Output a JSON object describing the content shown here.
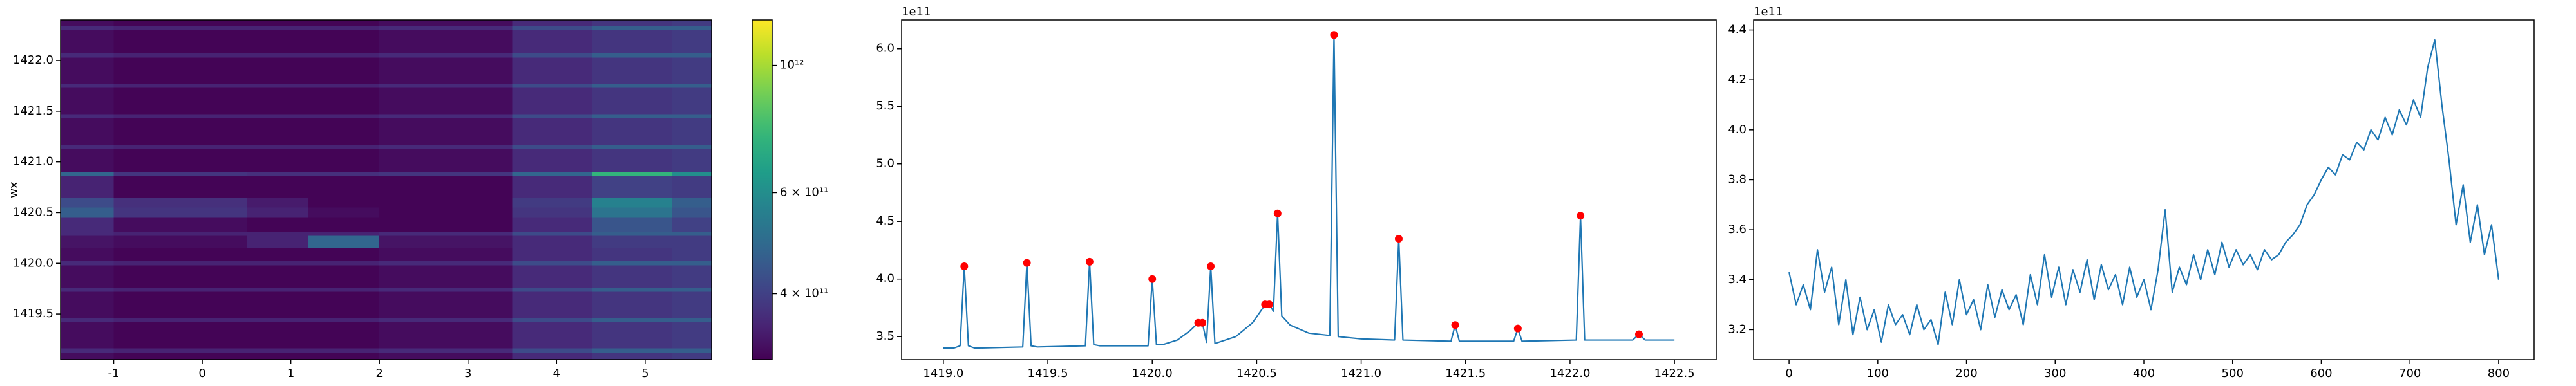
{
  "chart_data": [
    {
      "type": "heatmap",
      "ylabel": "wx",
      "colormap": "viridis",
      "xlim": [
        -1.6,
        5.75
      ],
      "ylim": [
        1419.05,
        1422.4
      ],
      "xticks": [
        -1,
        0,
        1,
        2,
        3,
        4,
        5
      ],
      "yticks": [
        1419.5,
        {
          "value": 1420.0,
          "label": "1420.0"
        },
        1420.5,
        {
          "value": 1421.0,
          "label": "1421.0"
        },
        1421.5,
        {
          "value": 1422.0,
          "label": "1422.0"
        }
      ],
      "xedges": [
        -1.6,
        -1.0,
        0.5,
        1.2,
        2.0,
        3.5,
        4.4,
        5.3,
        5.75
      ],
      "yedges": [
        1419.05,
        1419.12,
        1419.16,
        1419.42,
        1419.46,
        1419.72,
        1419.76,
        1419.98,
        1420.02,
        1420.15,
        1420.27,
        1420.31,
        1420.45,
        1420.55,
        1420.65,
        1420.86,
        1420.9,
        1421.13,
        1421.17,
        1421.43,
        1421.47,
        1421.73,
        1421.77,
        1422.03,
        1422.07,
        1422.3,
        1422.34,
        1422.4
      ],
      "z": [
        [
          320000000000.0,
          310000000000.0,
          310000000000.0,
          310000000000.0,
          320000000000.0,
          360000000000.0,
          380000000000.0,
          390000000000.0
        ],
        [
          360000000000.0,
          350000000000.0,
          350000000000.0,
          350000000000.0,
          360000000000.0,
          420000000000.0,
          460000000000.0,
          460000000000.0
        ],
        [
          320000000000.0,
          310000000000.0,
          310000000000.0,
          310000000000.0,
          320000000000.0,
          360000000000.0,
          380000000000.0,
          390000000000.0
        ],
        [
          360000000000.0,
          350000000000.0,
          350000000000.0,
          350000000000.0,
          360000000000.0,
          420000000000.0,
          460000000000.0,
          460000000000.0
        ],
        [
          320000000000.0,
          310000000000.0,
          310000000000.0,
          310000000000.0,
          320000000000.0,
          360000000000.0,
          380000000000.0,
          390000000000.0
        ],
        [
          360000000000.0,
          350000000000.0,
          350000000000.0,
          350000000000.0,
          360000000000.0,
          420000000000.0,
          460000000000.0,
          460000000000.0
        ],
        [
          320000000000.0,
          310000000000.0,
          310000000000.0,
          310000000000.0,
          320000000000.0,
          360000000000.0,
          380000000000.0,
          390000000000.0
        ],
        [
          360000000000.0,
          350000000000.0,
          350000000000.0,
          350000000000.0,
          360000000000.0,
          420000000000.0,
          460000000000.0,
          460000000000.0
        ],
        [
          320000000000.0,
          310000000000.0,
          310000000000.0,
          310000000000.0,
          320000000000.0,
          360000000000.0,
          380000000000.0,
          390000000000.0
        ],
        [
          330000000000.0,
          320000000000.0,
          350000000000.0,
          480000000000.0,
          330000000000.0,
          360000000000.0,
          390000000000.0,
          390000000000.0
        ],
        [
          360000000000.0,
          350000000000.0,
          350000000000.0,
          350000000000.0,
          360000000000.0,
          420000000000.0,
          460000000000.0,
          460000000000.0
        ],
        [
          360000000000.0,
          320000000000.0,
          310000000000.0,
          310000000000.0,
          310000000000.0,
          360000000000.0,
          440000000000.0,
          400000000000.0
        ],
        [
          460000000000.0,
          380000000000.0,
          350000000000.0,
          320000000000.0,
          310000000000.0,
          380000000000.0,
          520000000000.0,
          440000000000.0
        ],
        [
          420000000000.0,
          370000000000.0,
          340000000000.0,
          310000000000.0,
          310000000000.0,
          390000000000.0,
          560000000000.0,
          460000000000.0
        ],
        [
          350000000000.0,
          310000000000.0,
          310000000000.0,
          310000000000.0,
          310000000000.0,
          360000000000.0,
          400000000000.0,
          390000000000.0
        ],
        [
          480000000000.0,
          380000000000.0,
          370000000000.0,
          370000000000.0,
          380000000000.0,
          480000000000.0,
          750000000000.0,
          600000000000.0
        ],
        [
          320000000000.0,
          310000000000.0,
          310000000000.0,
          310000000000.0,
          320000000000.0,
          360000000000.0,
          380000000000.0,
          390000000000.0
        ],
        [
          360000000000.0,
          350000000000.0,
          350000000000.0,
          350000000000.0,
          360000000000.0,
          420000000000.0,
          460000000000.0,
          460000000000.0
        ],
        [
          320000000000.0,
          310000000000.0,
          310000000000.0,
          310000000000.0,
          320000000000.0,
          360000000000.0,
          380000000000.0,
          390000000000.0
        ],
        [
          360000000000.0,
          350000000000.0,
          350000000000.0,
          350000000000.0,
          360000000000.0,
          420000000000.0,
          460000000000.0,
          460000000000.0
        ],
        [
          320000000000.0,
          310000000000.0,
          310000000000.0,
          310000000000.0,
          320000000000.0,
          360000000000.0,
          380000000000.0,
          390000000000.0
        ],
        [
          360000000000.0,
          350000000000.0,
          350000000000.0,
          350000000000.0,
          360000000000.0,
          420000000000.0,
          460000000000.0,
          460000000000.0
        ],
        [
          320000000000.0,
          310000000000.0,
          310000000000.0,
          310000000000.0,
          320000000000.0,
          360000000000.0,
          380000000000.0,
          390000000000.0
        ],
        [
          360000000000.0,
          350000000000.0,
          350000000000.0,
          350000000000.0,
          360000000000.0,
          420000000000.0,
          460000000000.0,
          460000000000.0
        ],
        [
          320000000000.0,
          310000000000.0,
          310000000000.0,
          310000000000.0,
          320000000000.0,
          360000000000.0,
          380000000000.0,
          390000000000.0
        ],
        [
          360000000000.0,
          350000000000.0,
          350000000000.0,
          350000000000.0,
          360000000000.0,
          420000000000.0,
          460000000000.0,
          460000000000.0
        ],
        [
          320000000000.0,
          310000000000.0,
          310000000000.0,
          310000000000.0,
          320000000000.0,
          360000000000.0,
          380000000000.0,
          390000000000.0
        ]
      ],
      "colorbar": {
        "log": true,
        "lim": [
          307000000000.0,
          1200000000000.0
        ],
        "ticks": [
          {
            "value": 400000000000.0,
            "label": "4 × 10¹¹"
          },
          {
            "value": 600000000000.0,
            "label": "6 × 10¹¹"
          },
          {
            "value": 1000000000000.0,
            "label": "10¹²"
          }
        ]
      }
    },
    {
      "type": "line",
      "color": "#1f77b4",
      "offset_label": "1e11",
      "xlim": [
        1418.8,
        1422.7
      ],
      "ylim": [
        3.3,
        6.25
      ],
      "xticks": [
        {
          "value": 1419.0,
          "label": "1419.0"
        },
        1419.5,
        {
          "value": 1420.0,
          "label": "1420.0"
        },
        1420.5,
        {
          "value": 1421.0,
          "label": "1421.0"
        },
        1421.5,
        {
          "value": 1422.0,
          "label": "1422.0"
        },
        1422.5
      ],
      "yticks": [
        3.5,
        {
          "value": 4,
          "label": "4.0"
        },
        4.5,
        {
          "value": 5,
          "label": "5.0"
        },
        5.5,
        {
          "value": 6,
          "label": "6.0"
        }
      ],
      "x": [
        1419.0,
        1419.05,
        1419.08,
        1419.1,
        1419.12,
        1419.15,
        1419.38,
        1419.4,
        1419.42,
        1419.45,
        1419.68,
        1419.7,
        1419.72,
        1419.75,
        1419.98,
        1420.0,
        1420.02,
        1420.05,
        1420.12,
        1420.18,
        1420.22,
        1420.24,
        1420.26,
        1420.28,
        1420.3,
        1420.4,
        1420.48,
        1420.53,
        1420.56,
        1420.58,
        1420.6,
        1420.62,
        1420.66,
        1420.75,
        1420.85,
        1420.87,
        1420.89,
        1421.0,
        1421.16,
        1421.18,
        1421.2,
        1421.43,
        1421.45,
        1421.47,
        1421.73,
        1421.75,
        1421.77,
        1422.03,
        1422.05,
        1422.07,
        1422.3,
        1422.33,
        1422.36,
        1422.5
      ],
      "values": [
        3.4,
        3.4,
        3.42,
        4.11,
        3.42,
        3.4,
        3.41,
        4.14,
        3.42,
        3.41,
        3.42,
        4.15,
        3.43,
        3.42,
        3.42,
        4.0,
        3.43,
        3.43,
        3.47,
        3.55,
        3.62,
        3.62,
        3.45,
        4.11,
        3.44,
        3.5,
        3.62,
        3.75,
        3.78,
        3.72,
        4.57,
        3.68,
        3.6,
        3.53,
        3.51,
        6.12,
        3.5,
        3.48,
        3.47,
        4.35,
        3.47,
        3.46,
        3.6,
        3.46,
        3.46,
        3.57,
        3.46,
        3.47,
        4.55,
        3.47,
        3.47,
        3.52,
        3.47,
        3.47
      ],
      "markers": {
        "color": "red",
        "x": [
          1419.1,
          1419.4,
          1419.7,
          1420.0,
          1420.22,
          1420.24,
          1420.28,
          1420.54,
          1420.56,
          1420.6,
          1420.87,
          1421.18,
          1421.45,
          1421.75,
          1422.05,
          1422.33
        ],
        "y": [
          4.11,
          4.14,
          4.15,
          4.0,
          3.62,
          3.62,
          4.11,
          3.78,
          3.78,
          4.57,
          6.12,
          4.35,
          3.6,
          3.57,
          4.55,
          3.52
        ]
      }
    },
    {
      "type": "line",
      "color": "#1f77b4",
      "offset_label": "1e11",
      "xlim": [
        -40,
        840
      ],
      "ylim": [
        3.08,
        4.44
      ],
      "xticks": [
        0,
        100,
        200,
        300,
        400,
        500,
        600,
        700,
        800
      ],
      "yticks": [
        3.2,
        3.4,
        3.6,
        3.8,
        {
          "value": 4,
          "label": "4.0"
        },
        4.2,
        4.4
      ],
      "x": [
        0,
        8,
        16,
        24,
        32,
        40,
        48,
        56,
        64,
        72,
        80,
        88,
        96,
        104,
        112,
        120,
        128,
        136,
        144,
        152,
        160,
        168,
        176,
        184,
        192,
        200,
        208,
        216,
        224,
        232,
        240,
        248,
        256,
        264,
        272,
        280,
        288,
        296,
        304,
        312,
        320,
        328,
        336,
        344,
        352,
        360,
        368,
        376,
        384,
        392,
        400,
        408,
        416,
        424,
        432,
        440,
        448,
        456,
        464,
        472,
        480,
        488,
        496,
        504,
        512,
        520,
        528,
        536,
        544,
        552,
        560,
        568,
        576,
        584,
        592,
        600,
        608,
        616,
        624,
        632,
        640,
        648,
        656,
        664,
        672,
        680,
        688,
        696,
        704,
        712,
        720,
        728,
        736,
        744,
        752,
        760,
        768,
        776,
        784,
        792,
        800
      ],
      "values": [
        3.43,
        3.3,
        3.38,
        3.28,
        3.52,
        3.35,
        3.45,
        3.22,
        3.4,
        3.18,
        3.33,
        3.2,
        3.28,
        3.15,
        3.3,
        3.22,
        3.26,
        3.18,
        3.3,
        3.2,
        3.24,
        3.14,
        3.35,
        3.22,
        3.4,
        3.26,
        3.32,
        3.2,
        3.38,
        3.25,
        3.36,
        3.28,
        3.34,
        3.22,
        3.42,
        3.3,
        3.5,
        3.33,
        3.45,
        3.3,
        3.44,
        3.35,
        3.48,
        3.32,
        3.46,
        3.36,
        3.42,
        3.3,
        3.45,
        3.33,
        3.4,
        3.28,
        3.44,
        3.68,
        3.35,
        3.45,
        3.38,
        3.5,
        3.4,
        3.52,
        3.42,
        3.55,
        3.45,
        3.52,
        3.46,
        3.5,
        3.44,
        3.52,
        3.48,
        3.5,
        3.55,
        3.58,
        3.62,
        3.7,
        3.74,
        3.8,
        3.85,
        3.82,
        3.9,
        3.88,
        3.95,
        3.92,
        4.0,
        3.96,
        4.05,
        3.98,
        4.08,
        4.02,
        4.12,
        4.05,
        4.25,
        4.36,
        4.1,
        3.88,
        3.62,
        3.78,
        3.55,
        3.7,
        3.5,
        3.62,
        3.4
      ]
    }
  ]
}
